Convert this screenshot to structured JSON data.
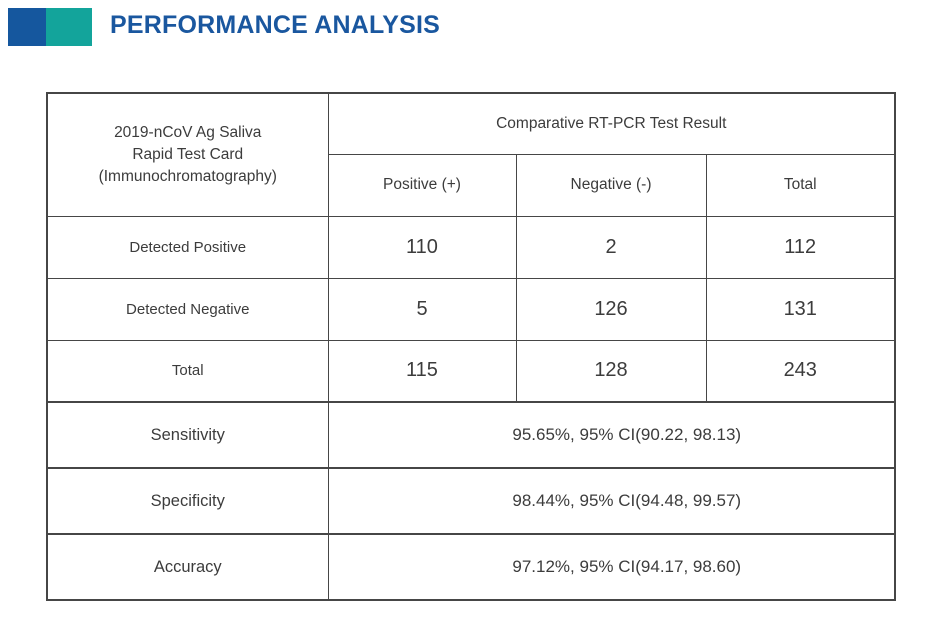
{
  "header": {
    "title": "PERFORMANCE ANALYSIS"
  },
  "colors": {
    "accent_blue": "#15579E",
    "accent_teal": "#13A49B",
    "title_blue": "#1A579F",
    "border_gray": "#464646",
    "text_gray": "#3C3C3C"
  },
  "table": {
    "corner_label": "2019-nCoV Ag Saliva\nRapid Test Card\n(Immunochromatography)",
    "group_header": "Comparative RT-PCR Test Result",
    "col_headers": [
      "Positive (+)",
      "Negative (-)",
      "Total"
    ],
    "matrix_rows": [
      {
        "label": "Detected Positive",
        "values": [
          "110",
          "2",
          "112"
        ]
      },
      {
        "label": "Detected Negative",
        "values": [
          "5",
          "126",
          "131"
        ]
      },
      {
        "label": "Total",
        "values": [
          "115",
          "128",
          "243"
        ]
      }
    ],
    "stats_rows": [
      {
        "label": "Sensitivity",
        "value": "95.65%, 95% CI(90.22, 98.13)"
      },
      {
        "label": "Specificity",
        "value": "98.44%, 95% CI(94.48, 99.57)"
      },
      {
        "label": "Accuracy",
        "value": "97.12%, 95% CI(94.17, 98.60)"
      }
    ]
  }
}
